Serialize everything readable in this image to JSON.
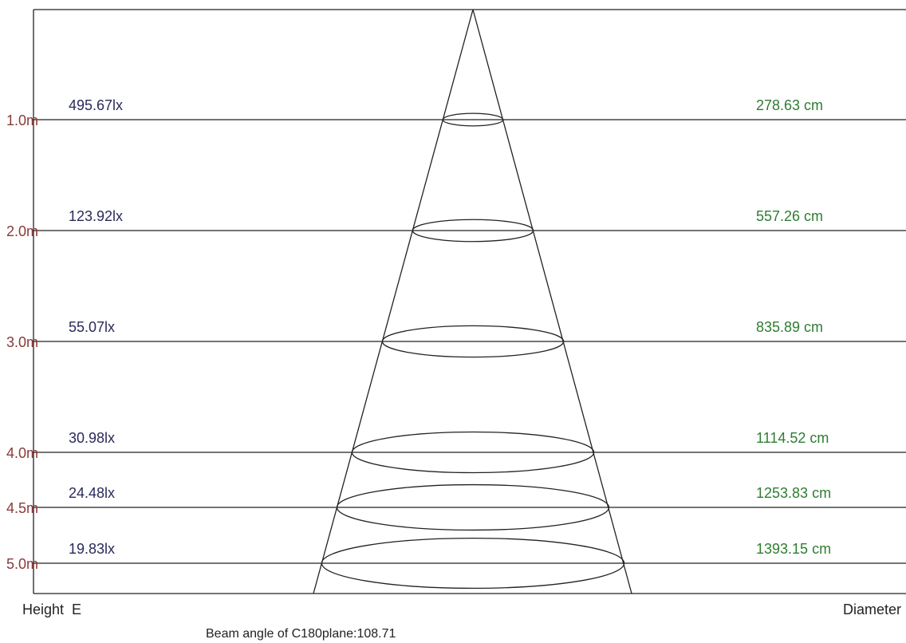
{
  "levels": [
    {
      "height": "1.0m",
      "illuminance": "495.67lx",
      "diameter": "278.63 cm"
    },
    {
      "height": "2.0m",
      "illuminance": "123.92lx",
      "diameter": "557.26 cm"
    },
    {
      "height": "3.0m",
      "illuminance": "55.07lx",
      "diameter": "835.89 cm"
    },
    {
      "height": "4.0m",
      "illuminance": "30.98lx",
      "diameter": "1114.52 cm"
    },
    {
      "height": "4.5m",
      "illuminance": "24.48lx",
      "diameter": "1253.83 cm"
    },
    {
      "height": "5.0m",
      "illuminance": "19.83lx",
      "diameter": "1393.15 cm"
    }
  ],
  "labels": {
    "height_e": "Height  E",
    "diameter": "Diameter",
    "beam_angle": "Beam angle of C180plane:108.71"
  },
  "colors": {
    "height": "#8a3a3a",
    "illuminance": "#2a2a5a",
    "diameter": "#2e7d32",
    "lines": "#222222"
  }
}
